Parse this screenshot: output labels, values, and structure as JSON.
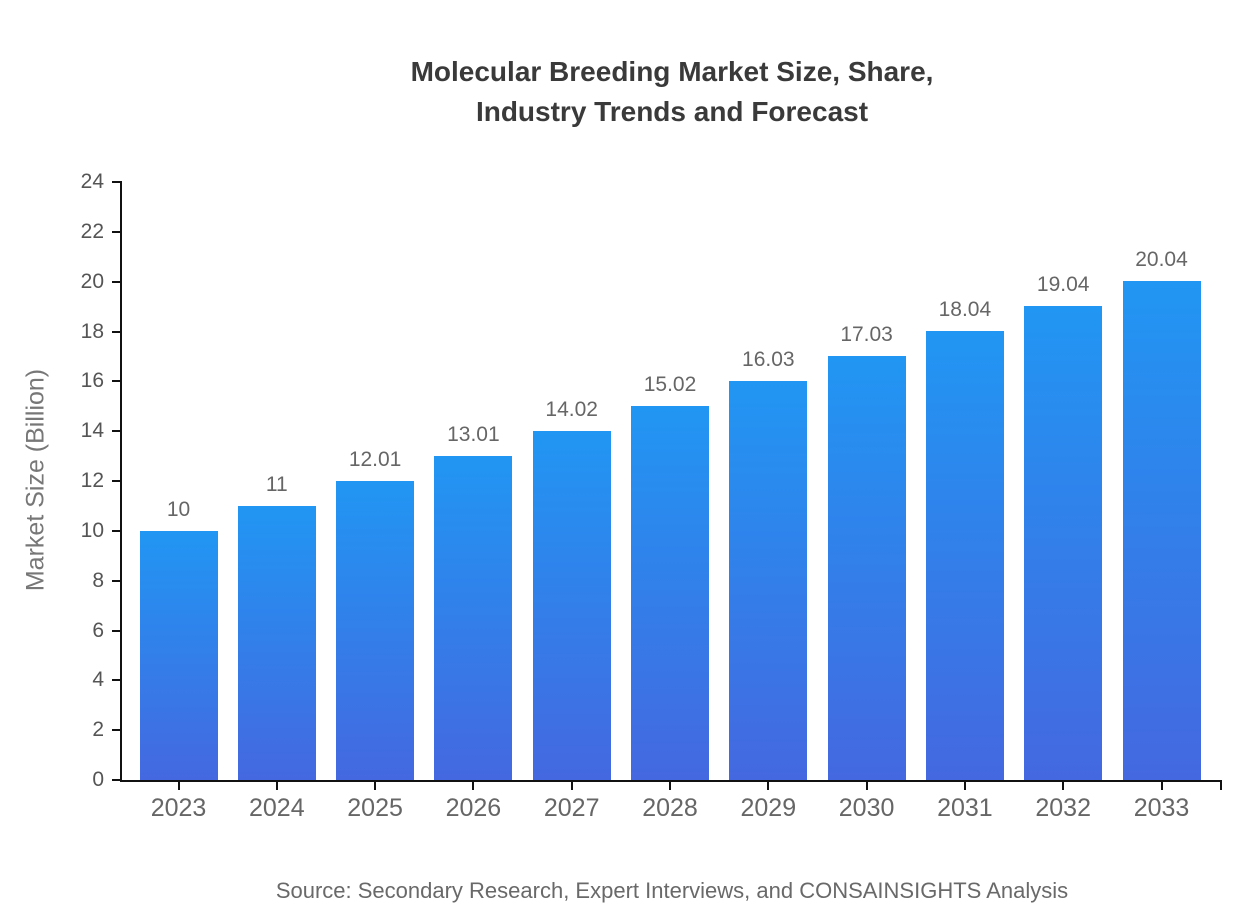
{
  "chart_data": {
    "type": "bar",
    "title": "Molecular Breeding Market Size, Share, Industry Trends and Forecast",
    "title_lines": [
      "Molecular Breeding Market Size, Share,",
      "Industry Trends and Forecast"
    ],
    "categories": [
      "2023",
      "2024",
      "2025",
      "2026",
      "2027",
      "2028",
      "2029",
      "2030",
      "2031",
      "2032",
      "2033"
    ],
    "values": [
      10,
      11,
      12.01,
      13.01,
      14.02,
      15.02,
      16.03,
      17.03,
      18.04,
      19.04,
      20.04
    ],
    "value_labels": [
      "10",
      "11",
      "12.01",
      "13.01",
      "14.02",
      "15.02",
      "16.03",
      "17.03",
      "18.04",
      "19.04",
      "20.04"
    ],
    "xlabel": "",
    "ylabel": "Market Size (Billion)",
    "ylim": [
      0,
      24
    ],
    "ytick_step": 2,
    "grid": false,
    "legend_position": "none",
    "bar_gradient_top": "#2196f3",
    "bar_gradient_bottom": "#4468e0",
    "axis_color": "#111111"
  },
  "footer": {
    "source": "Source: Secondary Research, Expert Interviews, and CONSAINSIGHTS Analysis"
  }
}
